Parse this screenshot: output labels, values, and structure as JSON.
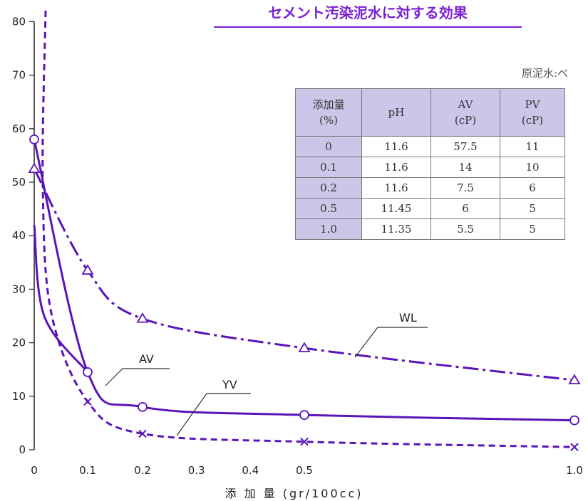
{
  "chart_data": {
    "type": "line",
    "title": "セメント汚染泥水に対する効果",
    "xlabel": "添 加 量 (gr/100cc)",
    "ylabel": "",
    "x_ticks": [
      "0",
      "0.1",
      "0.2",
      "0.3",
      "0.4",
      "0.5",
      "1.0"
    ],
    "xlim": [
      0,
      1.0
    ],
    "ylim": [
      0,
      80
    ],
    "y_ticks": [
      "0",
      "10",
      "20",
      "30",
      "40",
      "50",
      "60",
      "70",
      "80"
    ],
    "grid": false,
    "series": [
      {
        "name": "WL",
        "marker": "triangle",
        "line_style": "dash-dot",
        "color": "#5a14b8",
        "x": [
          0,
          0.1,
          0.2,
          0.5,
          1.0
        ],
        "y": [
          52.5,
          33.5,
          24.5,
          19,
          13
        ]
      },
      {
        "name": "AV",
        "marker": "circle",
        "line_style": "solid",
        "color": "#5a14b8",
        "x": [
          0,
          0.1,
          0.2,
          0.5,
          1.0
        ],
        "y": [
          58,
          14.5,
          8,
          6.5,
          5.5
        ]
      },
      {
        "name": "YV",
        "marker": "x",
        "line_style": "dashed",
        "color": "#5a14b8",
        "x": [
          0,
          0.1,
          0.2,
          0.5,
          1.0
        ],
        "y": [
          null,
          9,
          3,
          1.5,
          0.5
        ]
      }
    ],
    "annotations": [
      "WL",
      "AV",
      "YV"
    ]
  },
  "note": "原泥水:ベ",
  "properties_table": {
    "headers": [
      "添加量\n(%)",
      "pH",
      "AV\n(cP)",
      "PV\n(cP)"
    ],
    "rows": [
      [
        "0",
        "11.6",
        "57.5",
        "11"
      ],
      [
        "0.1",
        "11.6",
        "14",
        "10"
      ],
      [
        "0.2",
        "11.6",
        "7.5",
        "6"
      ],
      [
        "0.5",
        "11.45",
        "6",
        "5"
      ],
      [
        "1.0",
        "11.35",
        "5.5",
        "5"
      ]
    ]
  },
  "colors": {
    "line": "#5a14b8",
    "title": "#7a1fd6",
    "table_fill": "#ccc6e8"
  }
}
